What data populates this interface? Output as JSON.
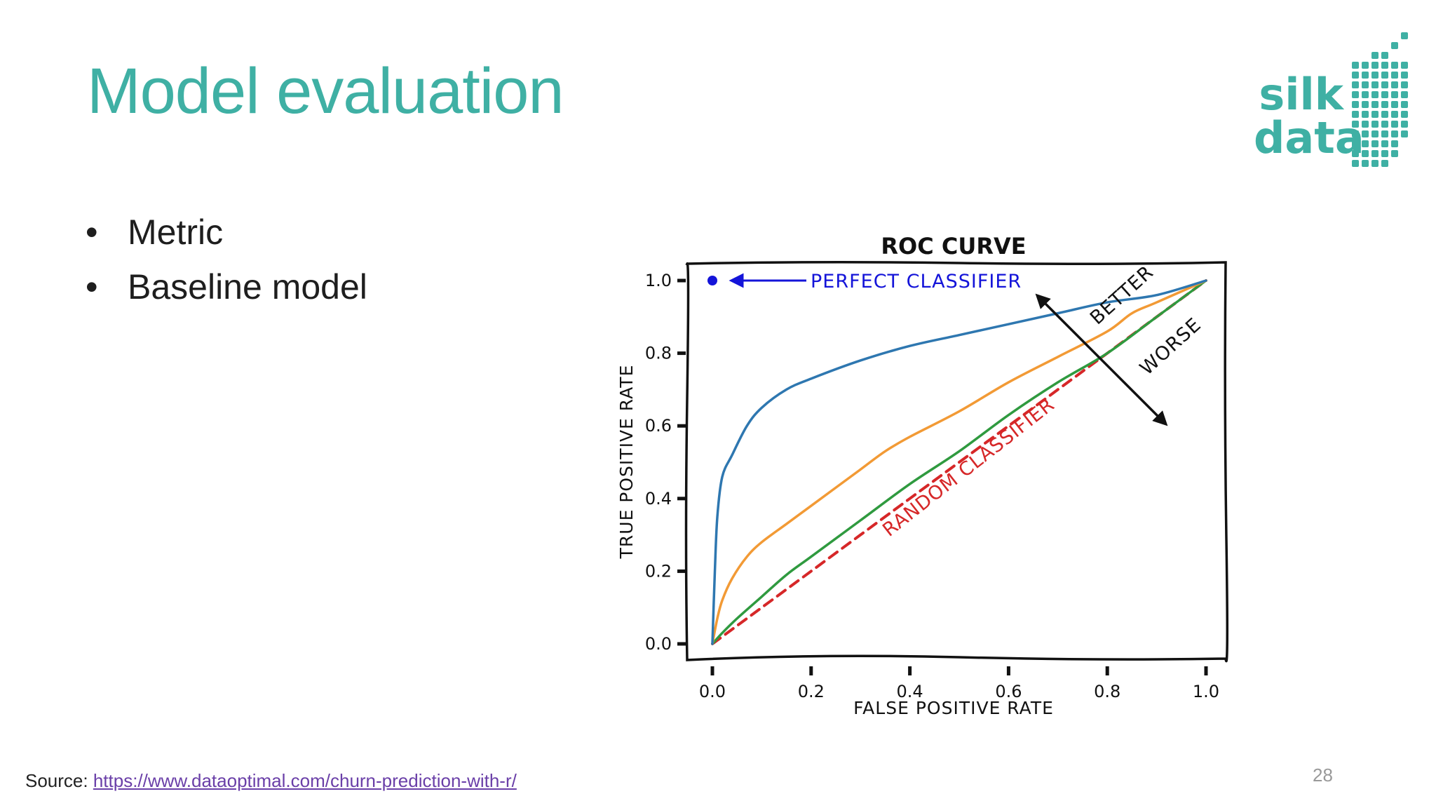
{
  "slide": {
    "title": "Model evaluation",
    "bullets": [
      "Metric",
      "Baseline model"
    ],
    "source_label": "Source:",
    "source_link": "https://www.dataoptimal.com/churn-prediction-with-r/",
    "page_number": "28"
  },
  "logo": {
    "line1": "silk",
    "line2": "data",
    "color": "#3fb0a4"
  },
  "chart_data": {
    "type": "line",
    "title": "ROC CURVE",
    "xlabel": "FALSE POSITIVE RATE",
    "ylabel": "TRUE POSITIVE RATE",
    "xlim": [
      0,
      1
    ],
    "ylim": [
      0,
      1
    ],
    "xticks": [
      "0.0",
      "0.2",
      "0.4",
      "0.6",
      "0.8",
      "1.0"
    ],
    "yticks": [
      "0.0",
      "0.2",
      "0.4",
      "0.6",
      "0.8",
      "1.0"
    ],
    "grid": false,
    "series": [
      {
        "color": "#2e77b0",
        "dash": false,
        "x": [
          0,
          0.005,
          0.01,
          0.02,
          0.04,
          0.07,
          0.1,
          0.15,
          0.2,
          0.3,
          0.4,
          0.5,
          0.6,
          0.7,
          0.8,
          0.9,
          1.0
        ],
        "y": [
          0,
          0.2,
          0.35,
          0.46,
          0.52,
          0.6,
          0.65,
          0.7,
          0.73,
          0.78,
          0.82,
          0.85,
          0.88,
          0.91,
          0.94,
          0.96,
          1.0
        ]
      },
      {
        "color": "#f29a35",
        "dash": false,
        "x": [
          0,
          0.01,
          0.02,
          0.04,
          0.07,
          0.1,
          0.15,
          0.2,
          0.25,
          0.3,
          0.35,
          0.4,
          0.5,
          0.6,
          0.7,
          0.8,
          0.85,
          0.9,
          1.0
        ],
        "y": [
          0,
          0.07,
          0.12,
          0.18,
          0.24,
          0.28,
          0.33,
          0.38,
          0.43,
          0.48,
          0.53,
          0.57,
          0.64,
          0.72,
          0.79,
          0.86,
          0.91,
          0.94,
          1.0
        ]
      },
      {
        "color": "#2f9a3f",
        "dash": false,
        "x": [
          0,
          0.02,
          0.05,
          0.1,
          0.15,
          0.2,
          0.3,
          0.4,
          0.5,
          0.6,
          0.7,
          0.8,
          0.9,
          1.0
        ],
        "y": [
          0,
          0.03,
          0.07,
          0.13,
          0.19,
          0.24,
          0.34,
          0.44,
          0.53,
          0.63,
          0.72,
          0.8,
          0.9,
          1.0
        ]
      },
      {
        "color": "#d62728",
        "dash": true,
        "x": [
          0,
          0.2,
          0.4,
          0.6,
          0.8,
          1.0
        ],
        "y": [
          0,
          0.2,
          0.4,
          0.6,
          0.8,
          1.0
        ]
      }
    ],
    "points": [
      {
        "x": 0,
        "y": 1.0,
        "color": "#1414d9"
      }
    ],
    "annotations": [
      {
        "text": "PERFECT CLASSIFIER",
        "color": "#1414d9"
      },
      {
        "text": "RANDOM CLASSIFIER",
        "color": "#d62728"
      },
      {
        "text": "BETTER",
        "color": "#222222"
      },
      {
        "text": "WORSE",
        "color": "#222222"
      }
    ]
  }
}
